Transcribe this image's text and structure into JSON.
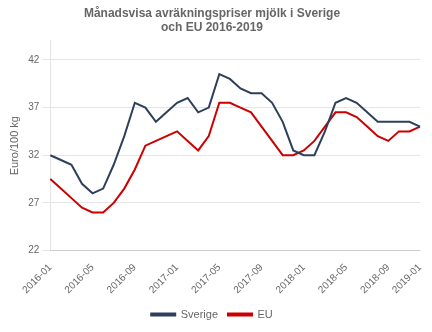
{
  "chart_data": {
    "type": "line",
    "title": "Månadsvisa avräkningspriser mjölk i Sverige\noch EU 2016-2019",
    "y_label": "Euro/100 kg",
    "categories": [
      "2016-01",
      null,
      null,
      null,
      "2016-05",
      null,
      null,
      null,
      "2016-09",
      null,
      null,
      null,
      "2017-01",
      null,
      null,
      null,
      "2017-05",
      null,
      null,
      null,
      "2017-09",
      null,
      null,
      null,
      "2018-01",
      null,
      null,
      null,
      "2018-05",
      null,
      null,
      null,
      "2018-09",
      null,
      null,
      "2019-01"
    ],
    "series": [
      {
        "name": "Sverige",
        "color": "#2E3F5C",
        "values": [
          32.0,
          31.5,
          31.0,
          29.0,
          28.0,
          28.5,
          31.0,
          34.0,
          37.5,
          37.0,
          35.5,
          36.5,
          37.5,
          38.0,
          36.5,
          37.0,
          40.5,
          40.0,
          39.0,
          38.5,
          38.5,
          37.5,
          35.5,
          32.5,
          32.0,
          32.0,
          34.5,
          37.5,
          38.0,
          37.5,
          36.5,
          35.5,
          35.5,
          35.5,
          35.5,
          35.0
        ]
      },
      {
        "name": "EU",
        "color": "#CC0000",
        "values": [
          29.5,
          28.5,
          27.5,
          26.5,
          26.0,
          26.0,
          27.0,
          28.5,
          30.5,
          33.0,
          33.5,
          34.0,
          34.5,
          33.5,
          32.5,
          34.0,
          37.5,
          37.5,
          37.0,
          36.5,
          35.0,
          33.5,
          32.0,
          32.0,
          32.5,
          33.5,
          35.0,
          36.5,
          36.5,
          36.0,
          35.0,
          34.0,
          33.5,
          34.5,
          34.5,
          35.0
        ]
      }
    ],
    "ylim": [
      22,
      44
    ],
    "yticks": [
      22,
      27,
      32,
      37,
      42
    ],
    "grid": true,
    "legend": "bottom"
  }
}
